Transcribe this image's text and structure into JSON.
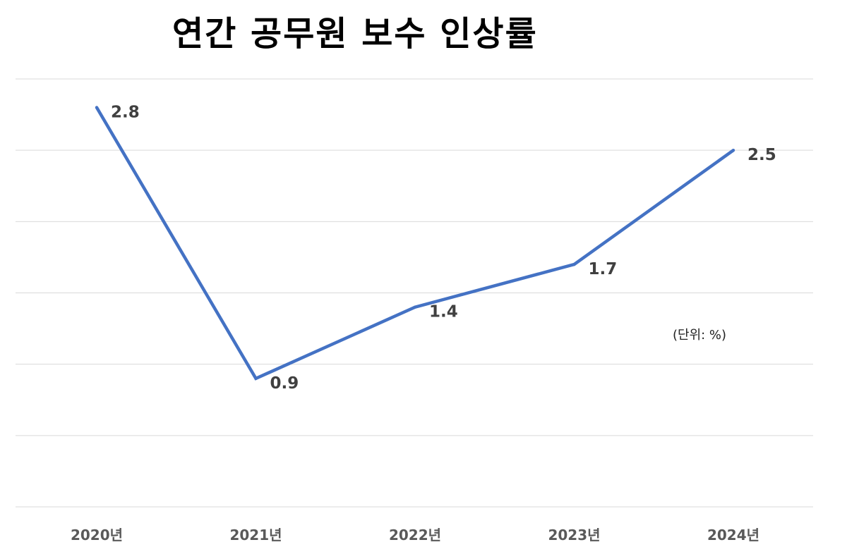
{
  "chart_data": {
    "type": "line",
    "title": "연간 공무원 보수 인상률",
    "unit_note": "(단위: %)",
    "categories": [
      "2020년",
      "2021년",
      "2022년",
      "2023년",
      "2024년"
    ],
    "series": [
      {
        "values": [
          2.8,
          0.9,
          1.4,
          1.7,
          2.5
        ],
        "color": "#4472C4"
      }
    ],
    "data_labels": [
      "2.8",
      "0.9",
      "1.4",
      "1.7",
      "2.5"
    ],
    "ylim": [
      0,
      3.0
    ],
    "grid": true,
    "legend": "none"
  }
}
